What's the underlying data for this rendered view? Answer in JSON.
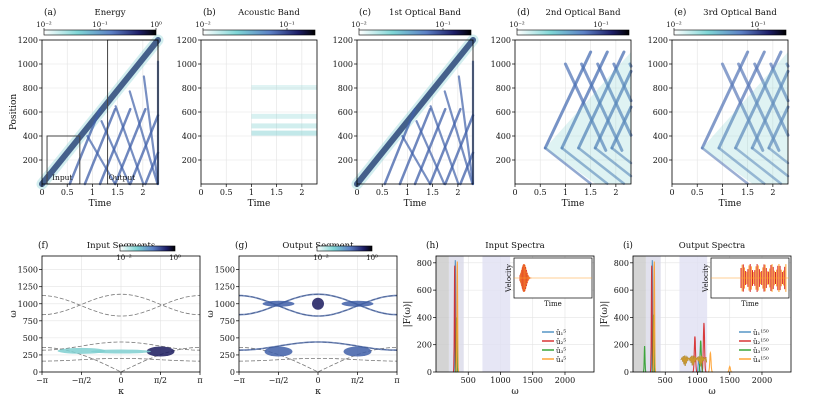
{
  "chart_data": [
    {
      "id": "a",
      "type": "heatmap",
      "label": "(a)",
      "title": "Energy",
      "xlabel": "Time",
      "ylabel": "Position",
      "xticks": [
        "0",
        "0.5",
        "1",
        "1.5",
        "2"
      ],
      "yticks": [
        "200",
        "400",
        "600",
        "800",
        "1000",
        "1200"
      ],
      "xlim": [
        0,
        2.3
      ],
      "ylim": [
        0,
        1200
      ],
      "colorbar": {
        "scale": "log",
        "ticks": [
          "10⁻²",
          "10⁻¹",
          "10⁰"
        ],
        "range": [
          0.01,
          1
        ]
      },
      "annotations": [
        "Input",
        "Output"
      ],
      "input_box": {
        "t": [
          0.1,
          0.75
        ],
        "pos": [
          0,
          400
        ]
      },
      "output_box": {
        "t": [
          1.3,
          2.3
        ],
        "pos": [
          0,
          1200
        ]
      }
    },
    {
      "id": "b",
      "type": "heatmap",
      "label": "(b)",
      "title": "Acoustic Band",
      "xlabel": "Time",
      "ylabel": "",
      "xticks": [
        "0",
        "0.5",
        "1",
        "1.5",
        "2"
      ],
      "yticks": [
        "200",
        "400",
        "600",
        "800",
        "1000",
        "1200"
      ],
      "xlim": [
        0,
        2.3
      ],
      "ylim": [
        0,
        1200
      ],
      "colorbar": {
        "scale": "log",
        "ticks": [
          "10⁻²",
          "10⁻¹"
        ],
        "range": [
          0.01,
          0.2
        ]
      }
    },
    {
      "id": "c",
      "type": "heatmap",
      "label": "(c)",
      "title": "1st Optical Band",
      "xlabel": "Time",
      "ylabel": "",
      "xticks": [
        "0",
        "0.5",
        "1",
        "1.5",
        "2"
      ],
      "yticks": [
        "200",
        "400",
        "600",
        "800",
        "1000",
        "1200"
      ],
      "xlim": [
        0,
        2.3
      ],
      "ylim": [
        0,
        1200
      ],
      "colorbar": {
        "scale": "log",
        "ticks": [
          "10⁻²",
          "10⁻¹"
        ],
        "range": [
          0.01,
          0.5
        ]
      }
    },
    {
      "id": "d",
      "type": "heatmap",
      "label": "(d)",
      "title": "2nd Optical Band",
      "xlabel": "Time",
      "ylabel": "",
      "xticks": [
        "0",
        "0.5",
        "1",
        "1.5",
        "2"
      ],
      "yticks": [
        "200",
        "400",
        "600",
        "800",
        "1000",
        "1200"
      ],
      "xlim": [
        0,
        2.3
      ],
      "ylim": [
        0,
        1200
      ],
      "colorbar": {
        "scale": "log",
        "ticks": [
          "10⁻²",
          "10⁻¹"
        ],
        "range": [
          0.01,
          0.5
        ]
      }
    },
    {
      "id": "e",
      "type": "heatmap",
      "label": "(e)",
      "title": "3rd Optical Band",
      "xlabel": "Time",
      "ylabel": "",
      "xticks": [
        "0",
        "0.5",
        "1",
        "1.5",
        "2"
      ],
      "yticks": [
        "200",
        "400",
        "600",
        "800",
        "1000",
        "1200"
      ],
      "xlim": [
        0,
        2.3
      ],
      "ylim": [
        0,
        1200
      ],
      "colorbar": {
        "scale": "log",
        "ticks": [
          "10⁻²",
          "10⁻¹"
        ],
        "range": [
          0.01,
          0.5
        ]
      }
    },
    {
      "id": "f",
      "type": "heatmap",
      "label": "(f)",
      "title": "Input Segments",
      "xlabel": "κ",
      "ylabel": "ω",
      "xticks": [
        "−π",
        "−π/2",
        "0",
        "π/2",
        "π"
      ],
      "yticks": [
        "0",
        "250",
        "500",
        "750",
        "1000",
        "1250",
        "1500"
      ],
      "xlim": [
        -3.1416,
        3.1416
      ],
      "ylim": [
        0,
        1700
      ],
      "colorbar": {
        "scale": "log",
        "ticks": [
          "10⁻²",
          "10⁰"
        ],
        "range": [
          0.01,
          1
        ]
      }
    },
    {
      "id": "g",
      "type": "heatmap",
      "label": "(g)",
      "title": "Output Segment",
      "xlabel": "κ",
      "ylabel": "ω",
      "xticks": [
        "−π",
        "−π/2",
        "0",
        "π/2",
        "π"
      ],
      "yticks": [
        "0",
        "250",
        "500",
        "750",
        "1000",
        "1250",
        "1500"
      ],
      "xlim": [
        -3.1416,
        3.1416
      ],
      "ylim": [
        0,
        1700
      ],
      "colorbar": {
        "scale": "log",
        "ticks": [
          "10⁻²",
          "10⁰"
        ],
        "range": [
          0.01,
          1
        ]
      }
    },
    {
      "id": "h",
      "type": "line",
      "label": "(h)",
      "title": "Input Spectra",
      "xlabel": "ω",
      "ylabel": "|F(ω)|",
      "xticks": [
        "500",
        "1000",
        "1500",
        "2000"
      ],
      "yticks": [
        "0",
        "200",
        "400",
        "600",
        "800"
      ],
      "xlim": [
        0,
        2450
      ],
      "ylim": [
        0,
        850
      ],
      "bands": [
        [
          0,
          200
        ],
        [
          200,
          430
        ],
        [
          720,
          1150
        ]
      ],
      "series": [
        {
          "name": "û₁⁵",
          "color": "#4a8ec2",
          "peaks": [
            [
              300,
              820
            ]
          ]
        },
        {
          "name": "û₂⁵",
          "color": "#d62728",
          "peaks": [
            [
              290,
              780
            ]
          ]
        },
        {
          "name": "û₃⁵",
          "color": "#2ca02c",
          "peaks": [
            [
              320,
              400
            ]
          ]
        },
        {
          "name": "û₄⁵",
          "color": "#ff9f2a",
          "peaks": [
            [
              330,
              810
            ]
          ]
        }
      ],
      "inset": {
        "xlabel": "Time",
        "ylabel": "Velocity"
      }
    },
    {
      "id": "i",
      "type": "line",
      "label": "(i)",
      "title": "Output Spectra",
      "xlabel": "ω",
      "ylabel": "|F(ω)|",
      "xticks": [
        "500",
        "1000",
        "1500",
        "2000"
      ],
      "yticks": [
        "0",
        "200",
        "400",
        "600",
        "800"
      ],
      "xlim": [
        0,
        2450
      ],
      "ylim": [
        0,
        850
      ],
      "bands": [
        [
          0,
          200
        ],
        [
          200,
          430
        ],
        [
          720,
          1150
        ]
      ],
      "series": [
        {
          "name": "û₁¹⁵⁰",
          "color": "#4a8ec2",
          "peaks": [
            [
              300,
              820
            ],
            [
              1020,
              90
            ]
          ]
        },
        {
          "name": "û₂¹⁵⁰",
          "color": "#d62728",
          "peaks": [
            [
              290,
              780
            ],
            [
              1100,
              360
            ],
            [
              960,
              260
            ]
          ]
        },
        {
          "name": "û₃¹⁵⁰",
          "color": "#2ca02c",
          "peaks": [
            [
              320,
              420
            ],
            [
              1050,
              230
            ],
            [
              180,
              190
            ]
          ]
        },
        {
          "name": "û₄¹⁵⁰",
          "color": "#ff9f2a",
          "peaks": [
            [
              330,
              810
            ],
            [
              1200,
              140
            ],
            [
              1500,
              40
            ]
          ]
        }
      ],
      "inset": {
        "xlabel": "Time",
        "ylabel": "Velocity"
      }
    }
  ]
}
